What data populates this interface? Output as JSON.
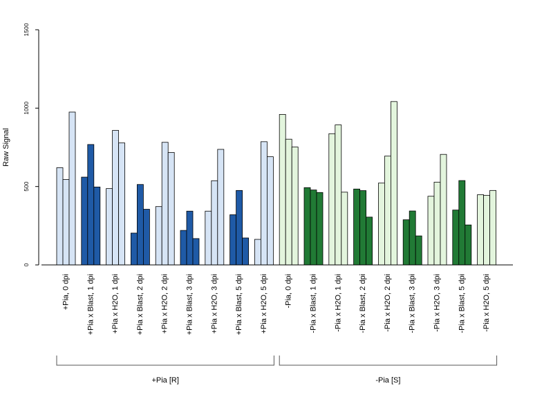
{
  "chart_data": {
    "type": "bar",
    "ylabel": "Raw Signal",
    "ylim": [
      0,
      1500
    ],
    "yticks": [
      0,
      500,
      1000,
      1500
    ],
    "groups": [
      {
        "label": "+Pia, 0 dpi",
        "values": [
          620,
          545,
          975
        ],
        "color": "#d6e4f5",
        "text_color": "#d6e4f5"
      },
      {
        "label": "+Pia x Blast, 1 dpi",
        "values": [
          560,
          768,
          497
        ],
        "color": "#1f5aa6"
      },
      {
        "label": "+Pia x H2O, 1 dpi",
        "values": [
          487,
          858,
          778
        ],
        "color": "#d6e4f5"
      },
      {
        "label": "+Pia x Blast, 2 dpi",
        "values": [
          203,
          513,
          355
        ],
        "color": "#1f5aa6"
      },
      {
        "label": "+Pia x H2O, 2 dpi",
        "values": [
          372,
          782,
          717
        ],
        "color": "#d6e4f5"
      },
      {
        "label": "+Pia x Blast, 3 dpi",
        "values": [
          220,
          343,
          168
        ],
        "color": "#1f5aa6"
      },
      {
        "label": "+Pia x H2O, 3 dpi",
        "values": [
          343,
          537,
          737
        ],
        "color": "#d6e4f5"
      },
      {
        "label": "+Pia x Blast, 5 dpi",
        "values": [
          320,
          475,
          172
        ],
        "color": "#1f5aa6"
      },
      {
        "label": "+Pia x H2O, 5 dpi",
        "values": [
          163,
          786,
          690
        ],
        "color": "#d6e4f5"
      },
      {
        "label": "-Pia, 0 dpi",
        "values": [
          960,
          802,
          752
        ],
        "color": "#e3f5dd"
      },
      {
        "label": "-Pia x Blast, 1 dpi",
        "values": [
          493,
          478,
          462
        ],
        "color": "#217a35"
      },
      {
        "label": "-Pia x H2O, 1 dpi",
        "values": [
          837,
          893,
          464
        ],
        "color": "#e3f5dd"
      },
      {
        "label": "-Pia x Blast, 2 dpi",
        "values": [
          484,
          474,
          305
        ],
        "color": "#217a35"
      },
      {
        "label": "-Pia x H2O, 2 dpi",
        "values": [
          522,
          694,
          1042
        ],
        "color": "#e3f5dd"
      },
      {
        "label": "-Pia x Blast, 3 dpi",
        "values": [
          288,
          344,
          185
        ],
        "color": "#217a35"
      },
      {
        "label": "-Pia x H2O, 3 dpi",
        "values": [
          438,
          528,
          705
        ],
        "color": "#e3f5dd"
      },
      {
        "label": "-Pia x Blast, 5 dpi",
        "values": [
          350,
          538,
          255
        ],
        "color": "#217a35"
      },
      {
        "label": "-Pia x H2O, 5 dpi",
        "values": [
          448,
          444,
          475
        ],
        "color": "#e3f5dd"
      }
    ],
    "brackets": [
      {
        "label": "+Pia [R]",
        "from": 0,
        "to": 8
      },
      {
        "label": "-Pia [S]",
        "from": 9,
        "to": 17
      }
    ],
    "bar_border": "#000000"
  }
}
